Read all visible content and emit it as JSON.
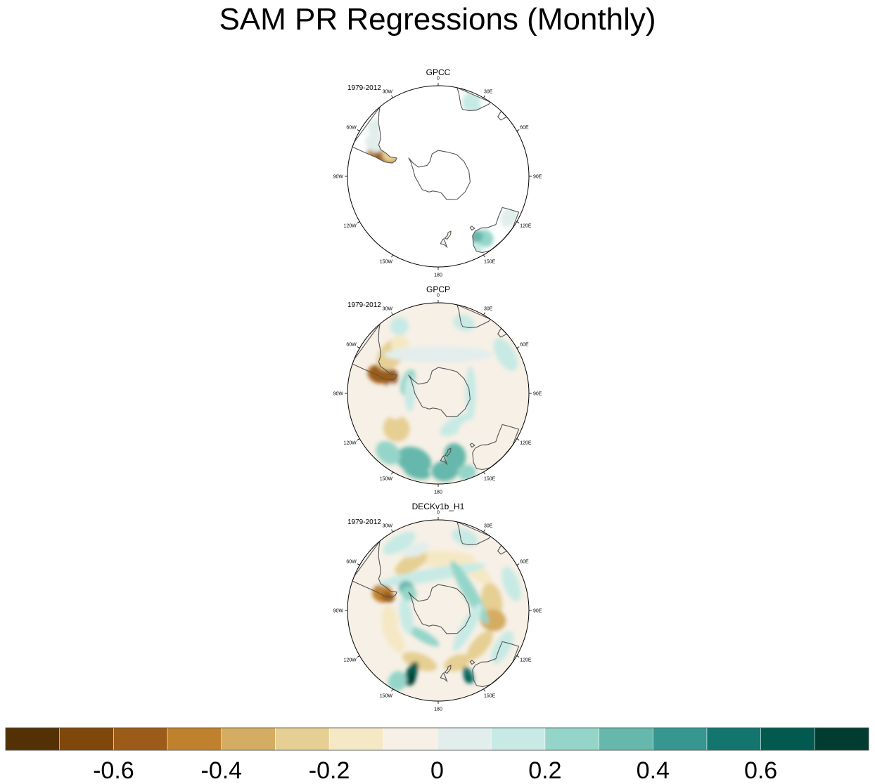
{
  "title": "SAM PR Regressions (Monthly)",
  "chart_data": {
    "type": "polar-stereographic contour maps (Southern Hemisphere)",
    "title": "SAM PR Regressions (Monthly)",
    "variable": "PR regression on SAM index",
    "period": "1979-2012",
    "longitude_labels": [
      "0",
      "30E",
      "60E",
      "90E",
      "120E",
      "150E",
      "180",
      "150W",
      "120W",
      "90W",
      "60W",
      "30W"
    ],
    "panels": [
      {
        "name": "GPCC",
        "period": "1979-2012",
        "coverage": "land only",
        "features": [
          {
            "region": "Southern Andes / Patagonia (60W-75W)",
            "value": -0.6
          },
          {
            "region": "southern Africa",
            "value": 0.1
          },
          {
            "region": "eastern Australia",
            "value": 0.2
          },
          {
            "region": "New Zealand",
            "value": -0.2
          }
        ]
      },
      {
        "name": "GPCP",
        "period": "1979-2012",
        "coverage": "global",
        "features": [
          {
            "region": "southern Chile / Patagonia",
            "value": -0.6
          },
          {
            "region": "South Atlantic (~45S, 40W)",
            "value": -0.3
          },
          {
            "region": "Southern Ocean ring (~55S)",
            "value": -0.1
          },
          {
            "region": "Antarctic coastal margin",
            "value": 0.1
          },
          {
            "region": "Tasman Sea / SW Pacific (40S)",
            "value": 0.3
          },
          {
            "region": "South Pacific (~130W, 50S)",
            "value": -0.3
          }
        ]
      },
      {
        "name": "DECKv1b_H1",
        "period": "1979-2012",
        "coverage": "global",
        "features": [
          {
            "region": "southern Chile",
            "value": -0.6
          },
          {
            "region": "Antarctic periphery ring (~65S)",
            "value": 0.2
          },
          {
            "region": "midlatitude ring (~50S)",
            "value": -0.3
          },
          {
            "region": "Indian Ocean (~100E, 50S)",
            "value": -0.4
          },
          {
            "region": "SW Pacific north of 40S (160W)",
            "value": 0.7
          },
          {
            "region": "Tasman Sea (155E, 35S)",
            "value": 0.6
          },
          {
            "region": "subtropics ring (~40S)",
            "value": 0.1
          }
        ]
      }
    ],
    "colorbar": {
      "levels": [
        -0.7,
        -0.6,
        -0.5,
        -0.4,
        -0.3,
        -0.2,
        -0.1,
        0,
        0.1,
        0.2,
        0.3,
        0.4,
        0.5,
        0.6,
        0.7
      ],
      "colors": [
        "#543005",
        "#7f4709",
        "#9c5b18",
        "#bf812d",
        "#d4ac62",
        "#e6cf93",
        "#f5e8c4",
        "#f6f0e6",
        "#e2eeec",
        "#c7eae5",
        "#95d5c9",
        "#66b8ac",
        "#35978f",
        "#13766e",
        "#015a50",
        "#003c30"
      ],
      "tick_labels": [
        "-0.6",
        "-0.4",
        "-0.2",
        "0",
        "0.2",
        "0.4",
        "0.6"
      ]
    }
  }
}
